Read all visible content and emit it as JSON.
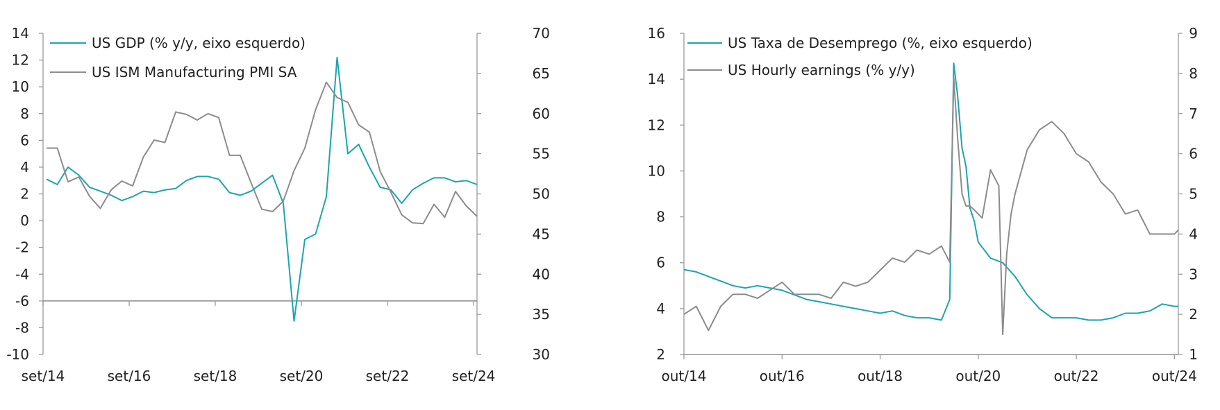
{
  "chart_data": [
    {
      "type": "line",
      "x_tick_labels": [
        "set/14",
        "set/16",
        "set/18",
        "set/20",
        "set/22",
        "set/24"
      ],
      "x_tick_values": [
        2014.67,
        2016.67,
        2018.67,
        2020.67,
        2022.67,
        2024.67
      ],
      "x_range": [
        2014.67,
        2024.75
      ],
      "left_axis": {
        "ylim": [
          -10,
          14
        ],
        "ticks": [
          -10,
          -8,
          -6,
          -4,
          -2,
          0,
          2,
          4,
          6,
          8,
          10,
          12,
          14
        ]
      },
      "right_axis": {
        "ylim": [
          30,
          70
        ],
        "ticks": [
          30,
          35,
          40,
          45,
          50,
          55,
          60,
          65,
          70
        ]
      },
      "grid": false,
      "legend_position": "top-left",
      "series": [
        {
          "name": "US GDP (% y/y, eixo esquerdo)",
          "axis": "left",
          "color": "#1aa5b0",
          "x": [
            2014.75,
            2015.0,
            2015.25,
            2015.5,
            2015.75,
            2016.0,
            2016.25,
            2016.5,
            2016.75,
            2017.0,
            2017.25,
            2017.5,
            2017.75,
            2018.0,
            2018.25,
            2018.5,
            2018.75,
            2019.0,
            2019.25,
            2019.5,
            2019.75,
            2020.0,
            2020.25,
            2020.5,
            2020.75,
            2021.0,
            2021.25,
            2021.5,
            2021.75,
            2022.0,
            2022.25,
            2022.5,
            2022.75,
            2023.0,
            2023.25,
            2023.5,
            2023.75,
            2024.0,
            2024.25,
            2024.5,
            2024.75
          ],
          "y": [
            3.1,
            2.7,
            4.0,
            3.4,
            2.5,
            2.2,
            1.9,
            1.5,
            1.8,
            2.2,
            2.1,
            2.3,
            2.4,
            3.0,
            3.3,
            3.3,
            3.1,
            2.1,
            1.9,
            2.2,
            2.8,
            3.4,
            1.3,
            -7.5,
            -1.4,
            -1.0,
            1.8,
            12.2,
            5.0,
            5.7,
            4.0,
            2.5,
            2.3,
            1.3,
            2.3,
            2.8,
            3.2,
            3.2,
            2.9,
            3.0,
            2.7
          ]
        },
        {
          "name": "US ISM Manufacturing PMI SA",
          "axis": "right",
          "color": "#8c8c8c",
          "x": [
            2014.75,
            2015.0,
            2015.25,
            2015.5,
            2015.75,
            2016.0,
            2016.25,
            2016.5,
            2016.75,
            2017.0,
            2017.25,
            2017.5,
            2017.75,
            2018.0,
            2018.25,
            2018.5,
            2018.75,
            2019.0,
            2019.25,
            2019.5,
            2019.75,
            2020.0,
            2020.25,
            2020.5,
            2020.75,
            2021.0,
            2021.25,
            2021.5,
            2021.75,
            2022.0,
            2022.25,
            2022.5,
            2022.75,
            2023.0,
            2023.25,
            2023.5,
            2023.75,
            2024.0,
            2024.25,
            2024.5,
            2024.75
          ],
          "y": [
            55.7,
            55.7,
            51.5,
            52.1,
            49.7,
            48.2,
            50.5,
            51.6,
            51.0,
            54.6,
            56.7,
            56.4,
            60.2,
            59.9,
            59.2,
            60.0,
            59.5,
            54.8,
            54.8,
            51.4,
            48.1,
            47.8,
            49.1,
            52.9,
            55.7,
            60.5,
            63.9,
            62.0,
            61.4,
            58.6,
            57.7,
            52.8,
            50.2,
            47.4,
            46.4,
            46.3,
            48.7,
            47.1,
            50.3,
            48.5,
            47.2
          ]
        }
      ]
    },
    {
      "type": "line",
      "x_tick_labels": [
        "out/14",
        "out/16",
        "out/18",
        "out/20",
        "out/22",
        "out/24"
      ],
      "x_tick_values": [
        2014.75,
        2016.75,
        2018.75,
        2020.75,
        2022.75,
        2024.75
      ],
      "x_range": [
        2014.75,
        2024.83
      ],
      "left_axis": {
        "ylim": [
          2,
          16
        ],
        "ticks": [
          2,
          4,
          6,
          8,
          10,
          12,
          14,
          16
        ]
      },
      "right_axis": {
        "ylim": [
          1,
          9
        ],
        "ticks": [
          1,
          2,
          3,
          4,
          5,
          6,
          7,
          8,
          9
        ]
      },
      "grid": false,
      "legend_position": "top-left",
      "series": [
        {
          "name": "US Taxa de Desemprego (%, eixo esquerdo)",
          "axis": "left",
          "color": "#1aa5b0",
          "x": [
            2014.75,
            2015.0,
            2015.25,
            2015.5,
            2015.75,
            2016.0,
            2016.25,
            2016.5,
            2016.75,
            2017.0,
            2017.25,
            2017.5,
            2017.75,
            2018.0,
            2018.25,
            2018.5,
            2018.75,
            2019.0,
            2019.25,
            2019.5,
            2019.75,
            2020.0,
            2020.17,
            2020.25,
            2020.33,
            2020.42,
            2020.5,
            2020.58,
            2020.67,
            2020.75,
            2021.0,
            2021.25,
            2021.5,
            2021.75,
            2022.0,
            2022.25,
            2022.5,
            2022.75,
            2023.0,
            2023.25,
            2023.5,
            2023.75,
            2024.0,
            2024.25,
            2024.5,
            2024.75,
            2024.83
          ],
          "y": [
            5.7,
            5.6,
            5.4,
            5.2,
            5.0,
            4.9,
            5.0,
            4.9,
            4.8,
            4.6,
            4.4,
            4.3,
            4.2,
            4.1,
            4.0,
            3.9,
            3.8,
            3.9,
            3.7,
            3.6,
            3.6,
            3.5,
            4.4,
            14.7,
            13.3,
            11.0,
            10.2,
            8.4,
            7.8,
            6.9,
            6.2,
            6.0,
            5.4,
            4.6,
            4.0,
            3.6,
            3.6,
            3.6,
            3.5,
            3.5,
            3.6,
            3.8,
            3.8,
            3.9,
            4.2,
            4.1,
            4.1
          ]
        },
        {
          "name": "US Hourly earnings (% y/y)",
          "axis": "right",
          "color": "#8c8c8c",
          "x": [
            2014.75,
            2015.0,
            2015.25,
            2015.5,
            2015.75,
            2016.0,
            2016.25,
            2016.5,
            2016.75,
            2017.0,
            2017.25,
            2017.5,
            2017.75,
            2018.0,
            2018.25,
            2018.5,
            2018.75,
            2019.0,
            2019.25,
            2019.5,
            2019.75,
            2020.0,
            2020.17,
            2020.25,
            2020.33,
            2020.42,
            2020.5,
            2020.58,
            2020.67,
            2020.75,
            2020.83,
            2021.0,
            2021.17,
            2021.25,
            2021.33,
            2021.42,
            2021.5,
            2021.75,
            2022.0,
            2022.25,
            2022.5,
            2022.75,
            2023.0,
            2023.25,
            2023.5,
            2023.75,
            2024.0,
            2024.25,
            2024.5,
            2024.75,
            2024.83
          ],
          "y": [
            2.0,
            2.2,
            1.6,
            2.2,
            2.5,
            2.5,
            2.4,
            2.6,
            2.8,
            2.5,
            2.5,
            2.5,
            2.4,
            2.8,
            2.7,
            2.8,
            3.1,
            3.4,
            3.3,
            3.6,
            3.5,
            3.7,
            3.3,
            7.9,
            6.4,
            5.0,
            4.7,
            4.7,
            4.6,
            4.5,
            4.4,
            5.6,
            5.2,
            1.5,
            3.5,
            4.5,
            5.0,
            6.1,
            6.6,
            6.8,
            6.5,
            6.0,
            5.8,
            5.3,
            5.0,
            4.5,
            4.6,
            4.0,
            4.0,
            4.0,
            4.1
          ]
        }
      ]
    }
  ]
}
